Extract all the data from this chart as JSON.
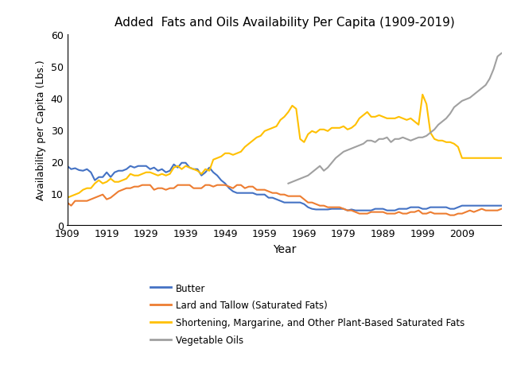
{
  "title": "Added  Fats and Oils Availability Per Capita (1909-2019)",
  "xlabel": "Year",
  "ylabel": "Availability per Capita (Lbs.)",
  "ylim": [
    0,
    60
  ],
  "yticks": [
    0,
    10,
    20,
    30,
    40,
    50,
    60
  ],
  "xticks": [
    1909,
    1919,
    1929,
    1939,
    1949,
    1959,
    1969,
    1979,
    1989,
    1999,
    2009
  ],
  "xlim": [
    1909,
    2019
  ],
  "colors": {
    "butter": "#4472C4",
    "lard": "#ED7D31",
    "shortening": "#FFC000",
    "veg_oils": "#A0A0A0"
  },
  "legend": [
    {
      "label": "Butter",
      "color": "#4472C4"
    },
    {
      "label": "Lard and Tallow (Saturated Fats)",
      "color": "#ED7D31"
    },
    {
      "label": "Shortening, Margarine, and Other Plant-Based Saturated Fats",
      "color": "#FFC000"
    },
    {
      "label": "Vegetable Oils",
      "color": "#A0A0A0"
    }
  ],
  "butter": {
    "years": [
      1909,
      1910,
      1911,
      1912,
      1913,
      1914,
      1915,
      1916,
      1917,
      1918,
      1919,
      1920,
      1921,
      1922,
      1923,
      1924,
      1925,
      1926,
      1927,
      1928,
      1929,
      1930,
      1931,
      1932,
      1933,
      1934,
      1935,
      1936,
      1937,
      1938,
      1939,
      1940,
      1941,
      1942,
      1943,
      1944,
      1945,
      1946,
      1947,
      1948,
      1949,
      1950,
      1951,
      1952,
      1953,
      1954,
      1955,
      1956,
      1957,
      1958,
      1959,
      1960,
      1961,
      1962,
      1963,
      1964,
      1965,
      1966,
      1967,
      1968,
      1969,
      1970,
      1971,
      1972,
      1973,
      1974,
      1975,
      1976,
      1977,
      1978,
      1979,
      1980,
      1981,
      1982,
      1983,
      1984,
      1985,
      1986,
      1987,
      1988,
      1989,
      1990,
      1991,
      1992,
      1993,
      1994,
      1995,
      1996,
      1997,
      1998,
      1999,
      2000,
      2001,
      2002,
      2003,
      2004,
      2005,
      2006,
      2007,
      2008,
      2009,
      2010,
      2011,
      2012,
      2013,
      2014,
      2015,
      2016,
      2017,
      2018,
      2019
    ],
    "values": [
      18.5,
      17.5,
      17.8,
      17.2,
      17.0,
      17.5,
      16.5,
      14.0,
      15.0,
      15.0,
      16.5,
      15.0,
      16.5,
      17.0,
      17.0,
      17.5,
      18.5,
      18.0,
      18.5,
      18.5,
      18.5,
      17.5,
      18.0,
      17.0,
      17.5,
      16.5,
      17.0,
      19.0,
      18.0,
      19.5,
      19.5,
      18.0,
      17.5,
      17.5,
      15.5,
      16.5,
      18.0,
      16.5,
      15.5,
      14.0,
      13.0,
      11.5,
      10.5,
      10.0,
      10.0,
      10.0,
      10.0,
      10.0,
      9.5,
      9.5,
      9.5,
      8.5,
      8.5,
      8.0,
      7.5,
      7.0,
      7.0,
      7.0,
      7.0,
      7.0,
      6.5,
      5.5,
      5.0,
      4.8,
      4.8,
      4.8,
      4.8,
      5.0,
      5.0,
      5.0,
      5.0,
      4.5,
      4.8,
      4.5,
      4.5,
      4.5,
      4.5,
      4.5,
      5.0,
      5.0,
      5.0,
      4.5,
      4.5,
      4.5,
      5.0,
      5.0,
      5.0,
      5.5,
      5.5,
      5.5,
      5.0,
      5.0,
      5.5,
      5.5,
      5.5,
      5.5,
      5.5,
      5.0,
      5.0,
      5.5,
      6.0,
      6.0,
      6.0,
      6.0,
      6.0,
      6.0,
      6.0,
      6.0,
      6.0,
      6.0,
      6.0
    ]
  },
  "lard": {
    "years": [
      1909,
      1910,
      1911,
      1912,
      1913,
      1914,
      1915,
      1916,
      1917,
      1918,
      1919,
      1920,
      1921,
      1922,
      1923,
      1924,
      1925,
      1926,
      1927,
      1928,
      1929,
      1930,
      1931,
      1932,
      1933,
      1934,
      1935,
      1936,
      1937,
      1938,
      1939,
      1940,
      1941,
      1942,
      1943,
      1944,
      1945,
      1946,
      1947,
      1948,
      1949,
      1950,
      1951,
      1952,
      1953,
      1954,
      1955,
      1956,
      1957,
      1958,
      1959,
      1960,
      1961,
      1962,
      1963,
      1964,
      1965,
      1966,
      1967,
      1968,
      1969,
      1970,
      1971,
      1972,
      1973,
      1974,
      1975,
      1976,
      1977,
      1978,
      1979,
      1980,
      1981,
      1982,
      1983,
      1984,
      1985,
      1986,
      1987,
      1988,
      1989,
      1990,
      1991,
      1992,
      1993,
      1994,
      1995,
      1996,
      1997,
      1998,
      1999,
      2000,
      2001,
      2002,
      2003,
      2004,
      2005,
      2006,
      2007,
      2008,
      2009,
      2010,
      2011,
      2012,
      2013,
      2014,
      2015,
      2016,
      2017,
      2018,
      2019
    ],
    "values": [
      7.0,
      6.0,
      7.5,
      7.5,
      7.5,
      7.5,
      8.0,
      8.5,
      9.0,
      9.5,
      8.0,
      8.5,
      9.5,
      10.5,
      11.0,
      11.5,
      11.5,
      12.0,
      12.0,
      12.5,
      12.5,
      12.5,
      11.0,
      11.5,
      11.5,
      11.0,
      11.5,
      11.5,
      12.5,
      12.5,
      12.5,
      12.5,
      11.5,
      11.5,
      11.5,
      12.5,
      12.5,
      12.0,
      12.5,
      12.5,
      12.5,
      12.0,
      11.5,
      12.5,
      12.5,
      11.5,
      12.0,
      12.0,
      11.0,
      11.0,
      11.0,
      10.5,
      10.0,
      10.0,
      9.5,
      9.5,
      9.0,
      9.0,
      9.0,
      9.0,
      8.0,
      7.0,
      7.0,
      6.5,
      6.0,
      6.0,
      5.5,
      5.5,
      5.5,
      5.5,
      5.0,
      4.5,
      4.5,
      4.0,
      3.5,
      3.5,
      3.5,
      4.0,
      4.0,
      4.0,
      4.0,
      3.5,
      3.5,
      3.5,
      4.0,
      3.5,
      3.5,
      4.0,
      4.0,
      4.5,
      3.5,
      3.5,
      4.0,
      3.5,
      3.5,
      3.5,
      3.5,
      3.0,
      3.0,
      3.5,
      3.5,
      4.0,
      4.5,
      4.0,
      4.5,
      5.0,
      4.5,
      4.5,
      4.5,
      4.5,
      5.0
    ]
  },
  "shortening": {
    "years": [
      1909,
      1910,
      1911,
      1912,
      1913,
      1914,
      1915,
      1916,
      1917,
      1918,
      1919,
      1920,
      1921,
      1922,
      1923,
      1924,
      1925,
      1926,
      1927,
      1928,
      1929,
      1930,
      1931,
      1932,
      1933,
      1934,
      1935,
      1936,
      1937,
      1938,
      1939,
      1940,
      1941,
      1942,
      1943,
      1944,
      1945,
      1946,
      1947,
      1948,
      1949,
      1950,
      1951,
      1952,
      1953,
      1954,
      1955,
      1956,
      1957,
      1958,
      1959,
      1960,
      1961,
      1962,
      1963,
      1964,
      1965,
      1966,
      1967,
      1968,
      1969,
      1970,
      1971,
      1972,
      1973,
      1974,
      1975,
      1976,
      1977,
      1978,
      1979,
      1980,
      1981,
      1982,
      1983,
      1984,
      1985,
      1986,
      1987,
      1988,
      1989,
      1990,
      1991,
      1992,
      1993,
      1994,
      1995,
      1996,
      1997,
      1998,
      1999,
      2000,
      2001,
      2002,
      2003,
      2004,
      2005,
      2006,
      2007,
      2008,
      2009,
      2010,
      2011,
      2012,
      2013,
      2014,
      2015,
      2016,
      2017,
      2018,
      2019
    ],
    "values": [
      8.5,
      9.0,
      9.5,
      10.0,
      11.0,
      11.5,
      11.5,
      13.0,
      14.0,
      13.0,
      13.5,
      14.5,
      13.5,
      13.5,
      14.0,
      14.5,
      16.0,
      15.5,
      15.5,
      16.0,
      16.5,
      16.5,
      16.0,
      15.5,
      16.0,
      15.5,
      16.0,
      18.0,
      18.5,
      17.5,
      18.5,
      18.0,
      17.5,
      17.0,
      16.0,
      17.5,
      17.0,
      20.5,
      21.0,
      21.5,
      22.5,
      22.5,
      22.0,
      22.5,
      23.0,
      24.5,
      25.5,
      26.5,
      27.5,
      28.0,
      29.5,
      30.0,
      30.5,
      31.0,
      33.0,
      34.0,
      35.5,
      37.5,
      36.5,
      27.0,
      26.0,
      28.5,
      29.5,
      29.0,
      30.0,
      30.0,
      29.5,
      30.5,
      30.5,
      30.5,
      31.0,
      30.0,
      30.5,
      31.5,
      33.5,
      34.5,
      35.5,
      34.0,
      34.0,
      34.5,
      34.0,
      33.5,
      33.5,
      33.5,
      34.0,
      33.5,
      33.0,
      33.5,
      32.5,
      31.5,
      41.0,
      38.0,
      29.0,
      27.0,
      26.5,
      26.5,
      26.0,
      26.0,
      25.5,
      24.5,
      21.0,
      21.0,
      21.0,
      21.0,
      21.0,
      21.0,
      21.0,
      21.0,
      21.0,
      21.0,
      21.0
    ]
  },
  "veg_oils": {
    "years": [
      1965,
      1966,
      1967,
      1968,
      1969,
      1970,
      1971,
      1972,
      1973,
      1974,
      1975,
      1976,
      1977,
      1978,
      1979,
      1980,
      1981,
      1982,
      1983,
      1984,
      1985,
      1986,
      1987,
      1988,
      1989,
      1990,
      1991,
      1992,
      1993,
      1994,
      1995,
      1996,
      1997,
      1998,
      1999,
      2000,
      2001,
      2002,
      2003,
      2004,
      2005,
      2006,
      2007,
      2008,
      2009,
      2010,
      2011,
      2012,
      2013,
      2014,
      2015,
      2016,
      2017,
      2018,
      2019
    ],
    "values": [
      13.0,
      13.5,
      14.0,
      14.5,
      15.0,
      15.5,
      16.5,
      17.5,
      18.5,
      17.0,
      18.0,
      19.5,
      21.0,
      22.0,
      23.0,
      23.5,
      24.0,
      24.5,
      25.0,
      25.5,
      26.5,
      26.5,
      26.0,
      27.0,
      27.0,
      27.5,
      26.0,
      27.0,
      27.0,
      27.5,
      27.0,
      26.5,
      27.0,
      27.5,
      27.5,
      28.0,
      29.0,
      30.0,
      31.5,
      32.5,
      33.5,
      35.0,
      37.0,
      38.0,
      39.0,
      39.5,
      40.0,
      41.0,
      42.0,
      43.0,
      44.0,
      46.0,
      49.0,
      53.0,
      54.0
    ]
  }
}
